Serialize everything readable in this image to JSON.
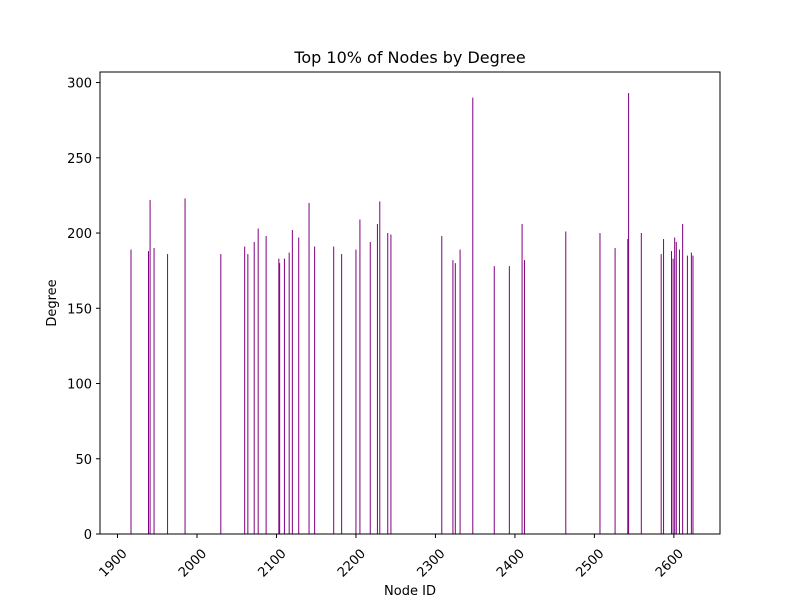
{
  "chart_data": {
    "type": "bar",
    "title": "Top 10% of Nodes by Degree",
    "xlabel": "Node ID",
    "ylabel": "Degree",
    "xlim": [
      1878,
      2658
    ],
    "ylim": [
      0,
      307
    ],
    "xticks": [
      1900,
      2000,
      2100,
      2200,
      2300,
      2400,
      2500,
      2600
    ],
    "yticks": [
      0,
      50,
      100,
      150,
      200,
      250,
      300
    ],
    "xtick_rotation": 45,
    "grid": false,
    "legend": "none",
    "bar_color": "#800080",
    "x": [
      1917,
      1939,
      1941,
      1946,
      1963,
      1985,
      2030,
      2060,
      2064,
      2072,
      2077,
      2087,
      2103,
      2104,
      2110,
      2116,
      2120,
      2128,
      2141,
      2148,
      2172,
      2182,
      2200,
      2205,
      2218,
      2227,
      2230,
      2240,
      2244,
      2308,
      2322,
      2325,
      2331,
      2347,
      2374,
      2393,
      2409,
      2412,
      2464,
      2507,
      2526,
      2542,
      2543,
      2559,
      2584,
      2587,
      2597,
      2599,
      2601,
      2603,
      2607,
      2611,
      2617,
      2622,
      2624
    ],
    "values": [
      189,
      188,
      222,
      190,
      186,
      223,
      186,
      191,
      186,
      194,
      203,
      198,
      183,
      180,
      183,
      187,
      202,
      197,
      220,
      191,
      191,
      186,
      189,
      209,
      194,
      206,
      221,
      200,
      199,
      198,
      182,
      180,
      189,
      290,
      178,
      178,
      206,
      182,
      201,
      200,
      190,
      196,
      293,
      200,
      186,
      196,
      188,
      183,
      197,
      194,
      189,
      206,
      185,
      187,
      185
    ]
  }
}
